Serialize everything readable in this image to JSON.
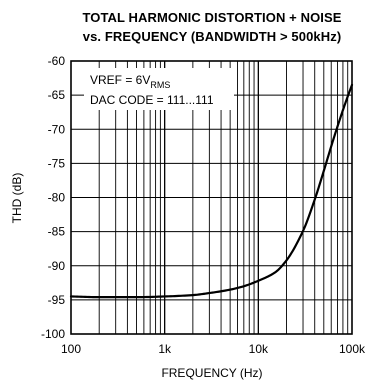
{
  "chart_data": {
    "type": "line",
    "title": "TOTAL HARMONIC DISTORTION + NOISE",
    "subtitle": "vs. FREQUENCY (BANDWIDTH > 500kHz)",
    "xlabel": "FREQUENCY (Hz)",
    "ylabel": "THD (dB)",
    "xscale": "log",
    "xlim": [
      100,
      100000
    ],
    "ylim": [
      -100,
      -60
    ],
    "x_ticks": [
      {
        "value": 100,
        "label": "100"
      },
      {
        "value": 1000,
        "label": "1k"
      },
      {
        "value": 10000,
        "label": "10k"
      },
      {
        "value": 100000,
        "label": "100k"
      }
    ],
    "y_ticks": [
      {
        "value": -60,
        "label": "-60"
      },
      {
        "value": -65,
        "label": "-65"
      },
      {
        "value": -70,
        "label": "-70"
      },
      {
        "value": -75,
        "label": "-75"
      },
      {
        "value": -80,
        "label": "-80"
      },
      {
        "value": -85,
        "label": "-85"
      },
      {
        "value": -90,
        "label": "-90"
      },
      {
        "value": -95,
        "label": "-95"
      },
      {
        "value": -100,
        "label": "-100"
      }
    ],
    "grid": true,
    "annotations": {
      "vref_prefix": "VREF = 6V",
      "vref_subscript": "RMS",
      "dac_code": "DAC CODE = 111...111"
    },
    "series": [
      {
        "x": [
          100,
          200,
          500,
          1000,
          2000,
          3000,
          5000,
          7000,
          10000,
          15000,
          20000,
          30000,
          40000,
          50000,
          60000,
          70000,
          80000,
          90000,
          100000
        ],
        "y": [
          -94.5,
          -94.6,
          -94.6,
          -94.5,
          -94.3,
          -94.0,
          -93.5,
          -93.0,
          -92.2,
          -91.0,
          -89.2,
          -84.9,
          -80.3,
          -76.1,
          -72.5,
          -69.6,
          -67.2,
          -65.2,
          -63.5
        ]
      }
    ],
    "colors": {
      "line": "#000000",
      "grid": "#000000",
      "background": "#ffffff"
    }
  }
}
